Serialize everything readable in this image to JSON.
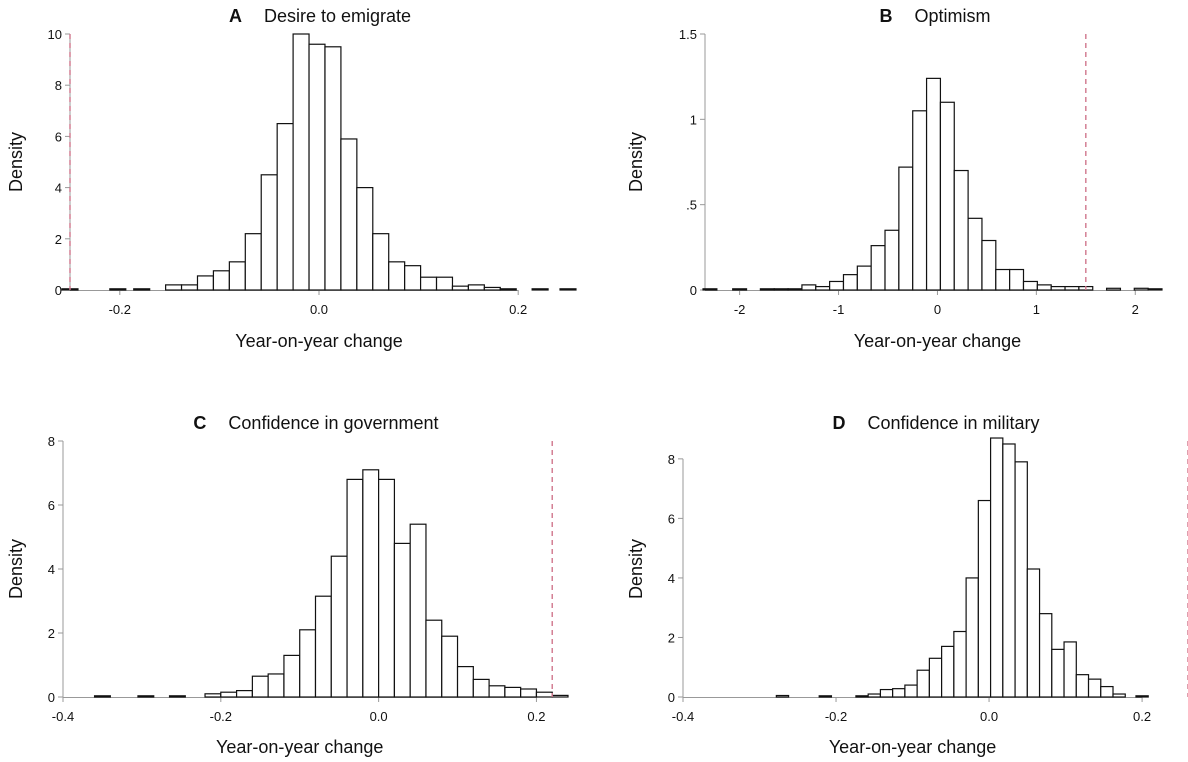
{
  "colors": {
    "bar_fill": "#ffffff",
    "bar_stroke": "#111111",
    "axis": "#999999",
    "reference_line": "#d0768c"
  },
  "chart_data": [
    {
      "type": "bar",
      "panel": "A",
      "title": "Desire to emigrate",
      "xlabel": "Year-on-year change",
      "ylabel": "Density",
      "xlim": [
        -0.25,
        0.25
      ],
      "ylim": [
        0,
        10
      ],
      "xticks": [
        -0.2,
        0,
        0.2
      ],
      "xtick_labels": [
        "-0.2",
        "0.0",
        "0.2"
      ],
      "yticks": [
        0,
        2,
        4,
        6,
        8,
        10
      ],
      "ytick_labels": [
        "0",
        "2",
        "4",
        "6",
        "8",
        "10"
      ],
      "bin_width": 0.016,
      "bin_centers": [
        -0.25,
        -0.202,
        -0.178,
        -0.146,
        -0.13,
        -0.114,
        -0.098,
        -0.082,
        -0.066,
        -0.05,
        -0.034,
        -0.018,
        -0.002,
        0.014,
        0.03,
        0.046,
        0.062,
        0.078,
        0.094,
        0.11,
        0.126,
        0.142,
        0.158,
        0.174,
        0.19,
        0.222,
        0.25
      ],
      "values": [
        0.02,
        0.01,
        0.03,
        0.2,
        0.2,
        0.55,
        0.75,
        1.1,
        2.2,
        4.5,
        6.5,
        10.0,
        9.6,
        9.5,
        5.9,
        4.0,
        2.2,
        1.1,
        0.95,
        0.5,
        0.5,
        0.15,
        0.2,
        0.1,
        0.02,
        0.01,
        0.02
      ],
      "reference_line_x": -0.25
    },
    {
      "type": "bar",
      "panel": "B",
      "title": "Optimism",
      "xlabel": "Year-on-year change",
      "ylabel": "Density",
      "xlim": [
        -2.35,
        2.25
      ],
      "ylim": [
        0,
        1.5
      ],
      "xticks": [
        -2,
        -1,
        0,
        1,
        2
      ],
      "xtick_labels": [
        "-2",
        "-1",
        "0",
        "1",
        "2"
      ],
      "yticks": [
        0,
        0.5,
        1,
        1.5
      ],
      "ytick_labels": [
        "0",
        ".5",
        "1",
        "1.5"
      ],
      "bin_width": 0.14,
      "bin_centers": [
        -2.3,
        -2.0,
        -1.72,
        -1.58,
        -1.44,
        -1.3,
        -1.16,
        -1.02,
        -0.88,
        -0.74,
        -0.6,
        -0.46,
        -0.32,
        -0.18,
        -0.04,
        0.1,
        0.24,
        0.38,
        0.52,
        0.66,
        0.8,
        0.94,
        1.08,
        1.22,
        1.36,
        1.5,
        1.78,
        2.06,
        2.2
      ],
      "values": [
        0.005,
        0.005,
        0.005,
        0.005,
        0.005,
        0.03,
        0.02,
        0.05,
        0.09,
        0.14,
        0.26,
        0.35,
        0.72,
        1.05,
        1.24,
        1.1,
        0.7,
        0.42,
        0.29,
        0.12,
        0.12,
        0.05,
        0.03,
        0.02,
        0.02,
        0.02,
        0.01,
        0.01,
        0.005
      ],
      "reference_line_x": 1.5
    },
    {
      "type": "bar",
      "panel": "C",
      "title": "Confidence in government",
      "xlabel": "Year-on-year change",
      "ylabel": "Density",
      "xlim": [
        -0.4,
        0.24
      ],
      "ylim": [
        0,
        8
      ],
      "xticks": [
        -0.4,
        -0.2,
        0,
        0.2
      ],
      "xtick_labels": [
        "-0.4",
        "-0.2",
        "0.0",
        "0.2"
      ],
      "yticks": [
        0,
        2,
        4,
        6,
        8
      ],
      "ytick_labels": [
        "0",
        "2",
        "4",
        "6",
        "8"
      ],
      "bin_width": 0.02,
      "bin_centers": [
        -0.35,
        -0.295,
        -0.255,
        -0.21,
        -0.19,
        -0.17,
        -0.15,
        -0.13,
        -0.11,
        -0.09,
        -0.07,
        -0.05,
        -0.03,
        -0.01,
        0.01,
        0.03,
        0.05,
        0.07,
        0.09,
        0.11,
        0.13,
        0.15,
        0.17,
        0.19,
        0.21,
        0.23
      ],
      "values": [
        0.02,
        0.02,
        0.02,
        0.1,
        0.15,
        0.2,
        0.65,
        0.72,
        1.3,
        2.1,
        3.15,
        4.4,
        6.8,
        7.1,
        6.8,
        4.8,
        5.4,
        2.4,
        1.9,
        0.95,
        0.55,
        0.35,
        0.3,
        0.25,
        0.15,
        0.05
      ],
      "reference_line_x": 0.22
    },
    {
      "type": "bar",
      "panel": "D",
      "title": "Confidence in military",
      "xlabel": "Year-on-year change",
      "ylabel": "Density",
      "xlim": [
        -0.4,
        0.26
      ],
      "ylim": [
        0,
        8.6
      ],
      "xticks": [
        -0.4,
        -0.2,
        0,
        0.2
      ],
      "xtick_labels": [
        "-0.4",
        "-0.2",
        "0.0",
        "0.2"
      ],
      "yticks": [
        0,
        2,
        4,
        6,
        8
      ],
      "ytick_labels": [
        "0",
        "2",
        "4",
        "6",
        "8"
      ],
      "bin_width": 0.016,
      "bin_centers": [
        -0.27,
        -0.214,
        -0.166,
        -0.15,
        -0.134,
        -0.118,
        -0.102,
        -0.086,
        -0.07,
        -0.054,
        -0.038,
        -0.022,
        -0.006,
        0.01,
        0.026,
        0.042,
        0.058,
        0.074,
        0.09,
        0.106,
        0.122,
        0.138,
        0.154,
        0.17,
        0.2
      ],
      "values": [
        0.05,
        0.02,
        0.02,
        0.1,
        0.25,
        0.28,
        0.4,
        0.9,
        1.3,
        1.7,
        2.2,
        4.0,
        6.6,
        8.7,
        8.5,
        7.9,
        4.3,
        2.8,
        1.6,
        1.85,
        0.75,
        0.6,
        0.35,
        0.1,
        0.03
      ],
      "reference_line_x": 0.26
    }
  ]
}
